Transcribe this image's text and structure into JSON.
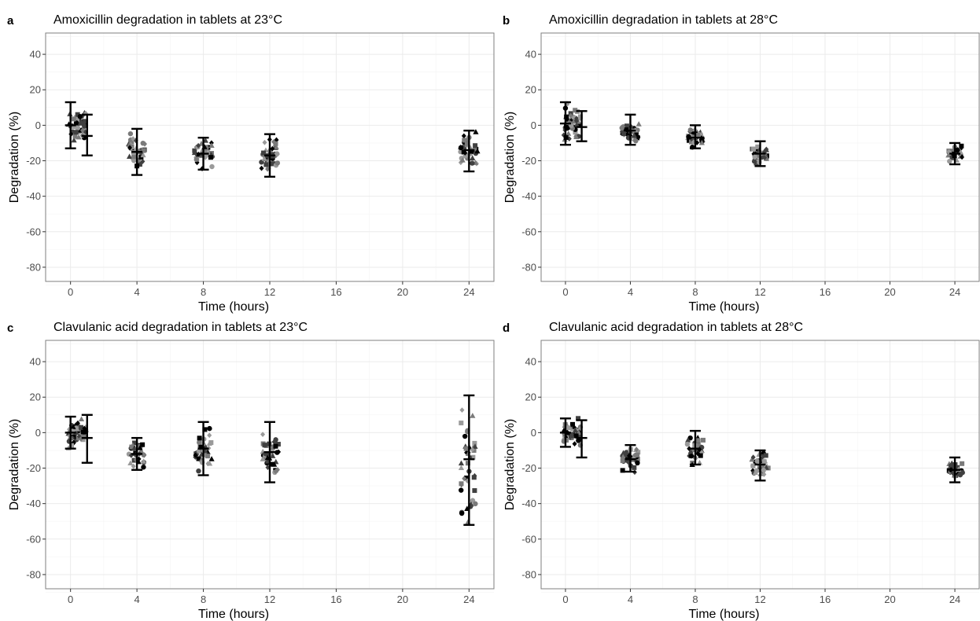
{
  "colors": {
    "black": "#000000",
    "dark_gray": "#404040",
    "mid_gray": "#7a7a7a",
    "light_gray": "#9a9a9a",
    "grid": "#ebebeb",
    "frame": "#7f7f7f"
  },
  "chart_data": [
    {
      "type": "scatter",
      "letter": "a",
      "title": "Amoxicillin degradation in tablets at 23°C",
      "xlabel": "Time (hours)",
      "ylabel": "Degradation (%)",
      "xlim": [
        -1.5,
        25.5
      ],
      "ylim": [
        -88,
        52
      ],
      "x_ticks": [
        0,
        4,
        8,
        12,
        16,
        20,
        24
      ],
      "y_ticks": [
        -80,
        -60,
        -40,
        -20,
        0,
        20,
        40
      ],
      "grid": true,
      "groups": [
        {
          "x": 0,
          "mean": 0,
          "lower": -13,
          "upper": 13,
          "spread": 1.5,
          "n": 48,
          "seed": 11
        },
        {
          "x": 1,
          "mean": -6,
          "lower": -17,
          "upper": 6,
          "spread": 1.0,
          "n": 0,
          "seed": 12
        },
        {
          "x": 4,
          "mean": -15,
          "lower": -28,
          "upper": -2,
          "spread": 1.5,
          "n": 36,
          "seed": 13
        },
        {
          "x": 8,
          "mean": -16,
          "lower": -25,
          "upper": -7,
          "spread": 1.6,
          "n": 36,
          "seed": 14
        },
        {
          "x": 12,
          "mean": -17,
          "lower": -29,
          "upper": -5,
          "spread": 1.5,
          "n": 36,
          "seed": 15
        },
        {
          "x": 24,
          "mean": -14,
          "lower": -26,
          "upper": -3,
          "spread": 1.5,
          "n": 36,
          "seed": 16
        }
      ]
    },
    {
      "type": "scatter",
      "letter": "b",
      "title": "Amoxicillin degradation in tablets at 28°C",
      "xlabel": "Time (hours)",
      "ylabel": "Degradation (%)",
      "xlim": [
        -1.5,
        25.5
      ],
      "ylim": [
        -88,
        52
      ],
      "x_ticks": [
        0,
        4,
        8,
        12,
        16,
        20,
        24
      ],
      "y_ticks": [
        -80,
        -60,
        -40,
        -20,
        0,
        20,
        40
      ],
      "grid": true,
      "groups": [
        {
          "x": 0,
          "mean": 1,
          "lower": -11,
          "upper": 13,
          "spread": 1.5,
          "n": 48,
          "seed": 21
        },
        {
          "x": 1,
          "mean": -1,
          "lower": -9,
          "upper": 8,
          "spread": 1.0,
          "n": 0,
          "seed": 22
        },
        {
          "x": 4,
          "mean": -3,
          "lower": -11,
          "upper": 6,
          "spread": 1.5,
          "n": 36,
          "seed": 23
        },
        {
          "x": 8,
          "mean": -7,
          "lower": -13,
          "upper": 0,
          "spread": 1.4,
          "n": 30,
          "seed": 24
        },
        {
          "x": 12,
          "mean": -16,
          "lower": -23,
          "upper": -9,
          "spread": 1.4,
          "n": 30,
          "seed": 25
        },
        {
          "x": 24,
          "mean": -16,
          "lower": -22,
          "upper": -10,
          "spread": 1.3,
          "n": 30,
          "seed": 26
        }
      ]
    },
    {
      "type": "scatter",
      "letter": "c",
      "title": "Clavulanic acid degradation in tablets at 23°C",
      "xlabel": "Time (hours)",
      "ylabel": "Degradation (%)",
      "xlim": [
        -1.5,
        25.5
      ],
      "ylim": [
        -88,
        52
      ],
      "x_ticks": [
        0,
        4,
        8,
        12,
        16,
        20,
        24
      ],
      "y_ticks": [
        -80,
        -60,
        -40,
        -20,
        0,
        20,
        40
      ],
      "grid": true,
      "groups": [
        {
          "x": 0,
          "mean": 0,
          "lower": -9,
          "upper": 9,
          "spread": 1.5,
          "n": 48,
          "seed": 31
        },
        {
          "x": 1,
          "mean": -3,
          "lower": -17,
          "upper": 10,
          "spread": 1.0,
          "n": 0,
          "seed": 32
        },
        {
          "x": 4,
          "mean": -12,
          "lower": -21,
          "upper": -3,
          "spread": 1.4,
          "n": 32,
          "seed": 33
        },
        {
          "x": 8,
          "mean": -9,
          "lower": -24,
          "upper": 6,
          "spread": 1.5,
          "n": 36,
          "seed": 34
        },
        {
          "x": 12,
          "mean": -11,
          "lower": -28,
          "upper": 6,
          "spread": 1.5,
          "n": 36,
          "seed": 35
        },
        {
          "x": 24,
          "mean": -15,
          "lower": -52,
          "upper": 21,
          "spread": 1.4,
          "n": 40,
          "seed": 36
        }
      ]
    },
    {
      "type": "scatter",
      "letter": "d",
      "title": "Clavulanic acid degradation in tablets at 28°C",
      "xlabel": "Time (hours)",
      "ylabel": "Degradation (%)",
      "xlim": [
        -1.5,
        25.5
      ],
      "ylim": [
        -88,
        52
      ],
      "x_ticks": [
        0,
        4,
        8,
        12,
        16,
        20,
        24
      ],
      "y_ticks": [
        -80,
        -60,
        -40,
        -20,
        0,
        20,
        40
      ],
      "grid": true,
      "groups": [
        {
          "x": 0,
          "mean": 0,
          "lower": -8,
          "upper": 8,
          "spread": 1.5,
          "n": 48,
          "seed": 41
        },
        {
          "x": 1,
          "mean": -3,
          "lower": -14,
          "upper": 7,
          "spread": 1.0,
          "n": 0,
          "seed": 42
        },
        {
          "x": 4,
          "mean": -15,
          "lower": -22,
          "upper": -7,
          "spread": 1.4,
          "n": 32,
          "seed": 43
        },
        {
          "x": 8,
          "mean": -9,
          "lower": -18,
          "upper": 1,
          "spread": 1.4,
          "n": 32,
          "seed": 44
        },
        {
          "x": 12,
          "mean": -18,
          "lower": -27,
          "upper": -10,
          "spread": 1.5,
          "n": 32,
          "seed": 45
        },
        {
          "x": 24,
          "mean": -21,
          "lower": -28,
          "upper": -14,
          "spread": 1.4,
          "n": 32,
          "seed": 46
        }
      ]
    }
  ]
}
